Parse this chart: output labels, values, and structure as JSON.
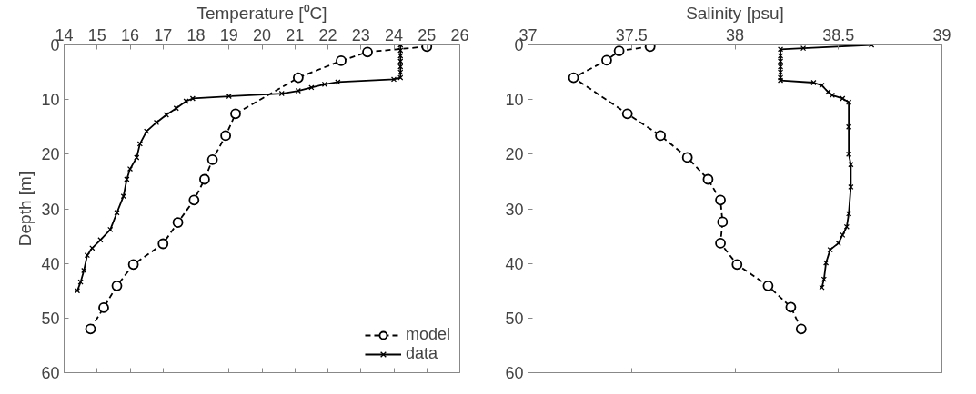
{
  "chart_data": [
    {
      "type": "line",
      "xlabel": "Temperature [⁰C]",
      "ylabel": "Depth [m]",
      "xlim": [
        14,
        26
      ],
      "xticks": [
        14,
        15,
        16,
        17,
        18,
        19,
        20,
        21,
        22,
        23,
        24,
        25,
        26
      ],
      "ylim": [
        60,
        0
      ],
      "yticks": [
        0,
        10,
        20,
        30,
        40,
        50,
        60
      ],
      "grid": false,
      "legend": "bottom right",
      "series": [
        {
          "name": "model",
          "color": "#000000",
          "marker": "circle",
          "line_style": "dashed",
          "x": [
            25.0,
            23.2,
            22.4,
            21.1,
            19.2,
            18.9,
            18.5,
            18.26,
            17.94,
            17.45,
            17.0,
            16.1,
            15.6,
            15.2,
            14.8
          ],
          "values": [
            0.3,
            1.3,
            2.9,
            6.0,
            12.6,
            16.6,
            21.0,
            24.6,
            28.4,
            32.5,
            36.4,
            40.2,
            44.1,
            48.1,
            52.0
          ]
        },
        {
          "name": "data",
          "color": "#000000",
          "marker": "cross",
          "line_style": "solid",
          "x": [
            24.2,
            24.2,
            24.2,
            24.2,
            24.2,
            24.2,
            24.2,
            24.0,
            22.3,
            21.9,
            21.5,
            21.1,
            20.6,
            19.0,
            17.9,
            17.7,
            17.4,
            17.1,
            16.8,
            16.5,
            16.3,
            16.2,
            16.0,
            15.9,
            15.8,
            15.6,
            15.4,
            15.1,
            14.85,
            14.7,
            14.6,
            14.5,
            14.4
          ],
          "values": [
            0.0,
            1.0,
            2.0,
            3.0,
            4.0,
            5.0,
            6.0,
            6.3,
            6.8,
            7.2,
            7.8,
            8.4,
            8.9,
            9.4,
            9.8,
            10.3,
            11.6,
            12.8,
            14.2,
            15.8,
            18.1,
            20.6,
            22.7,
            24.6,
            27.7,
            30.7,
            33.8,
            35.7,
            37.2,
            38.5,
            41.3,
            43.4,
            45.0
          ]
        }
      ]
    },
    {
      "type": "line",
      "xlabel": "Salinity [psu]",
      "xlim": [
        37,
        39
      ],
      "xticks": [
        37,
        37.5,
        38,
        38.5,
        39
      ],
      "ylim": [
        60,
        0
      ],
      "yticks": [
        0,
        10,
        20,
        30,
        40,
        50,
        60
      ],
      "grid": false,
      "series": [
        {
          "color": "#000000",
          "marker": "circle",
          "line_style": "dashed",
          "x": [
            37.59,
            37.44,
            37.38,
            37.22,
            37.48,
            37.64,
            37.77,
            37.87,
            37.93,
            37.94,
            37.93,
            38.01,
            38.16,
            38.27,
            38.32
          ],
          "values": [
            0.3,
            1.1,
            2.8,
            6.0,
            12.6,
            16.6,
            20.6,
            24.6,
            28.4,
            32.4,
            36.3,
            40.2,
            44.1,
            48.0,
            52.0
          ]
        },
        {
          "color": "#000000",
          "marker": "cross",
          "line_style": "solid",
          "x": [
            38.66,
            38.33,
            38.22,
            38.22,
            38.22,
            38.22,
            38.22,
            38.22,
            38.22,
            38.38,
            38.42,
            38.45,
            38.47,
            38.52,
            38.55,
            38.55,
            38.55,
            38.56,
            38.56,
            38.55,
            38.54,
            38.52,
            38.5,
            38.46,
            38.44,
            38.43,
            38.42
          ],
          "values": [
            0.0,
            0.6,
            0.8,
            2.0,
            3.0,
            4.0,
            5.0,
            6.0,
            6.5,
            6.9,
            7.4,
            8.6,
            9.2,
            9.8,
            10.5,
            15.0,
            20.0,
            21.9,
            26.0,
            30.9,
            33.3,
            34.8,
            36.3,
            37.5,
            39.9,
            42.9,
            44.4
          ]
        }
      ]
    }
  ]
}
